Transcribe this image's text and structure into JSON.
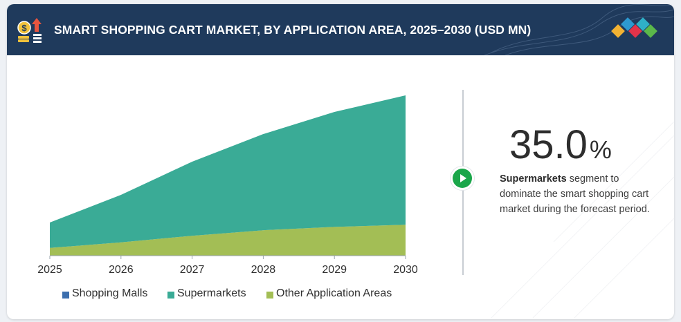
{
  "header": {
    "title": "SMART SHOPPING CART MARKET, BY APPLICATION AREA, 2025–2030 (USD MN)"
  },
  "colors": {
    "header_bg": "#1f3a5c",
    "shopping_malls": "#3d6fae",
    "supermarkets": "#3aab96",
    "other": "#a3be55",
    "highlight_green": "#1aa64a"
  },
  "icons": {
    "header_icon": "money-growth-icon",
    "brand_logo": "diamond-logo-icon",
    "play_button": "play-icon"
  },
  "chart_data": {
    "type": "area",
    "stacked": true,
    "categories": [
      "2025",
      "2026",
      "2027",
      "2028",
      "2029",
      "2030"
    ],
    "series": [
      {
        "name": "Shopping Malls",
        "values": [
          0,
          0,
          0,
          0,
          0,
          0
        ]
      },
      {
        "name": "Supermarkets",
        "values": [
          23,
          43,
          67,
          87,
          104,
          117
        ]
      },
      {
        "name": "Other Application Areas",
        "values": [
          7,
          12,
          18,
          23,
          26,
          28
        ]
      }
    ],
    "ylim": [
      0,
      150
    ],
    "y_axis_visible": false,
    "grid": false,
    "legend_position": "bottom"
  },
  "highlight": {
    "value": "35.0",
    "unit": "%",
    "bold_text": "Supermarkets",
    "text": " segment to dominate the smart shopping cart market during the forecast period."
  }
}
